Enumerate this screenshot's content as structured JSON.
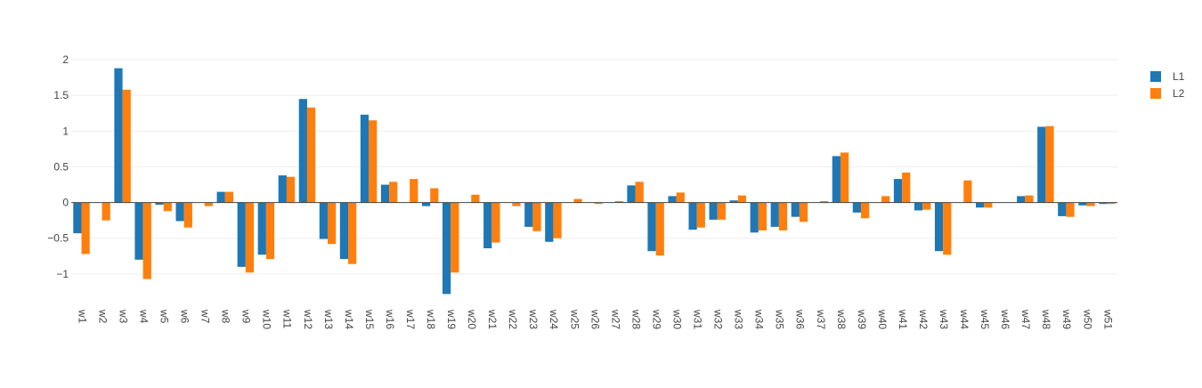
{
  "chart_data": {
    "type": "bar",
    "title": "",
    "xlabel": "",
    "ylabel": "",
    "ylim": [
      -1.4,
      2.15
    ],
    "yticks": [
      -1,
      -0.5,
      0,
      0.5,
      1,
      1.5,
      2
    ],
    "ytick_labels": [
      "−1",
      "−0.5",
      "0",
      "0.5",
      "1",
      "1.5",
      "2"
    ],
    "grid": true,
    "legend_position": "top-right",
    "categories": [
      "w1",
      "w2",
      "w3",
      "w4",
      "w5",
      "w6",
      "w7",
      "w8",
      "w9",
      "w10",
      "w11",
      "w12",
      "w13",
      "w14",
      "w15",
      "w16",
      "w17",
      "w18",
      "w19",
      "w20",
      "w21",
      "w22",
      "w23",
      "w24",
      "w25",
      "w26",
      "w27",
      "w28",
      "w29",
      "w30",
      "w31",
      "w32",
      "w33",
      "w34",
      "w35",
      "w36",
      "w37",
      "w38",
      "w39",
      "w40",
      "w41",
      "w42",
      "w43",
      "w44",
      "w45",
      "w46",
      "w47",
      "w48",
      "w49",
      "w50",
      "w51"
    ],
    "series": [
      {
        "name": "L1",
        "color": "#1f77b4",
        "values": [
          -0.43,
          0,
          1.88,
          -0.8,
          -0.03,
          -0.26,
          0,
          0.15,
          -0.9,
          -0.73,
          0.38,
          1.45,
          -0.51,
          -0.79,
          1.23,
          0.25,
          0,
          -0.05,
          -1.28,
          0,
          -0.64,
          0,
          -0.34,
          -0.55,
          0,
          0,
          0,
          0.24,
          -0.68,
          0.09,
          -0.38,
          -0.24,
          0.03,
          -0.42,
          -0.34,
          -0.2,
          0,
          0.65,
          -0.14,
          0,
          0.33,
          -0.11,
          -0.68,
          0,
          -0.07,
          0,
          0.09,
          1.06,
          -0.19,
          -0.04,
          -0.02
        ]
      },
      {
        "name": "L2",
        "color": "#ff7f0e",
        "values": [
          -0.72,
          -0.25,
          1.58,
          -1.07,
          -0.12,
          -0.35,
          -0.05,
          0.15,
          -0.98,
          -0.79,
          0.36,
          1.33,
          -0.58,
          -0.86,
          1.15,
          0.29,
          0.33,
          0.2,
          -0.98,
          0.11,
          -0.56,
          -0.05,
          -0.4,
          -0.5,
          0.05,
          -0.02,
          0.02,
          0.29,
          -0.74,
          0.14,
          -0.35,
          -0.24,
          0.1,
          -0.39,
          -0.39,
          -0.27,
          0.02,
          0.7,
          -0.22,
          0.09,
          0.42,
          -0.1,
          -0.73,
          0.31,
          -0.07,
          0,
          0.1,
          1.07,
          -0.2,
          -0.05,
          -0.02
        ]
      }
    ]
  }
}
